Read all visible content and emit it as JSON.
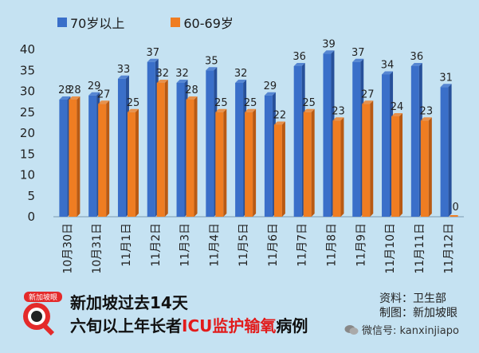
{
  "legend": {
    "series_a": "70岁以上",
    "series_b": "60-69岁"
  },
  "caption": {
    "line1": "新加坡过去14天",
    "line2_pre": "六旬以上年长者",
    "line2_hl": "ICU监护输氧",
    "line2_post": "病例"
  },
  "credit": {
    "source": "资料：卫生部",
    "made_by": "制图：新加坡眼"
  },
  "watermark": "微信号: kanxinjiapo",
  "logo_text": "新加坡眼",
  "colors": {
    "series_a": "#3a6fc9",
    "series_a_dark": "#27509a",
    "series_b": "#ef7d22",
    "series_b_dark": "#b95a13",
    "background": "#c5e2f2",
    "highlight": "#e21b1b"
  },
  "chart_data": {
    "type": "bar",
    "categories": [
      "10月30日",
      "10月31日",
      "11月1日",
      "11月2日",
      "11月3日",
      "11月4日",
      "11月5日",
      "11月6日",
      "11月7日",
      "11月8日",
      "11月9日",
      "11月10日",
      "11月11日",
      "11月12日"
    ],
    "series": [
      {
        "name": "70岁以上",
        "values": [
          28,
          29,
          33,
          37,
          32,
          35,
          32,
          29,
          36,
          39,
          37,
          34,
          36,
          31
        ]
      },
      {
        "name": "60-69岁",
        "values": [
          28,
          27,
          25,
          32,
          28,
          25,
          25,
          22,
          25,
          23,
          27,
          24,
          23,
          0
        ]
      }
    ],
    "yticks": [
      0,
      5,
      10,
      15,
      20,
      25,
      30,
      35,
      40
    ],
    "ylim": [
      0,
      40
    ],
    "grid": false,
    "legend_position": "top-left"
  }
}
